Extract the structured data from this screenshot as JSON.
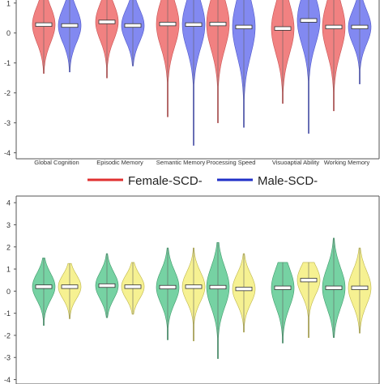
{
  "chart_data": [
    {
      "type": "violin",
      "categories": [
        "Global Cognition",
        "Episodic Memory",
        "Semantic Memory",
        "Processing Speed",
        "Visuoaptial Ability",
        "Working Memory"
      ],
      "ylim": [
        -4.2,
        2.4
      ],
      "yticks": [
        -4,
        -3,
        -2,
        -1,
        0,
        1,
        2
      ],
      "legend": {
        "position": "bottom",
        "entries": [
          "Female-SCD-",
          "Male-SCD-"
        ]
      },
      "series": [
        {
          "name": "Female-SCD-",
          "color": "#f07a7a",
          "stroke": "#c85050",
          "median": [
            0.28,
            0.37,
            0.3,
            0.3,
            0.15,
            0.2
          ],
          "min": [
            -1.35,
            -1.5,
            -2.8,
            -3.0,
            -2.35,
            -2.6
          ],
          "max": [
            1.7,
            1.75,
            1.8,
            2.4,
            1.3,
            2.45
          ],
          "q1": [
            -0.2,
            -0.15,
            -0.25,
            -0.3,
            -0.45,
            -0.4
          ],
          "q3": [
            0.7,
            0.75,
            0.9,
            0.95,
            0.8,
            0.85
          ]
        },
        {
          "name": "Male-SCD-",
          "color": "#7b83f0",
          "stroke": "#4d55c8",
          "median": [
            0.25,
            0.25,
            0.28,
            0.2,
            0.42,
            0.2
          ],
          "min": [
            -1.3,
            -1.1,
            -3.75,
            -3.15,
            -3.35,
            -1.7
          ],
          "max": [
            1.45,
            1.4,
            2.5,
            2.1,
            1.3,
            2.15
          ],
          "q1": [
            -0.2,
            -0.2,
            -0.35,
            -0.6,
            -0.2,
            -0.2
          ],
          "q3": [
            0.65,
            0.6,
            0.85,
            0.8,
            1.0,
            0.65
          ]
        }
      ]
    },
    {
      "type": "violin",
      "categories": [
        "Global Cognition",
        "Episodic Memory",
        "Semantic Memory",
        "Processing Speed",
        "Visuoaptial Ability",
        "Working Memory"
      ],
      "ylim": [
        -4.2,
        4.3
      ],
      "yticks": [
        -4,
        -3,
        -2,
        -1,
        0,
        1,
        2,
        3,
        4
      ],
      "series": [
        {
          "color": "#6fd09e",
          "stroke": "#3f9a6a",
          "median": [
            0.2,
            0.25,
            0.18,
            0.18,
            0.15,
            0.15
          ],
          "min": [
            -1.55,
            -1.2,
            -2.2,
            -3.05,
            -2.35,
            -2.1
          ],
          "max": [
            1.5,
            1.7,
            1.95,
            2.2,
            1.3,
            2.4
          ],
          "q1": [
            -0.25,
            -0.15,
            -0.3,
            -0.4,
            -0.45,
            -0.4
          ],
          "q3": [
            0.65,
            0.75,
            0.8,
            0.95,
            0.85,
            0.95
          ]
        },
        {
          "color": "#f5f08c",
          "stroke": "#bdb54a",
          "median": [
            0.2,
            0.2,
            0.2,
            0.1,
            0.5,
            0.15
          ],
          "min": [
            -1.25,
            -1.05,
            -2.25,
            -1.85,
            -2.1,
            -1.9
          ],
          "max": [
            1.25,
            1.3,
            1.95,
            1.7,
            1.3,
            1.95
          ],
          "q1": [
            -0.2,
            -0.15,
            -0.25,
            -0.35,
            0.0,
            -0.35
          ],
          "q3": [
            0.6,
            0.65,
            0.75,
            0.65,
            1.0,
            0.8
          ]
        }
      ]
    }
  ]
}
